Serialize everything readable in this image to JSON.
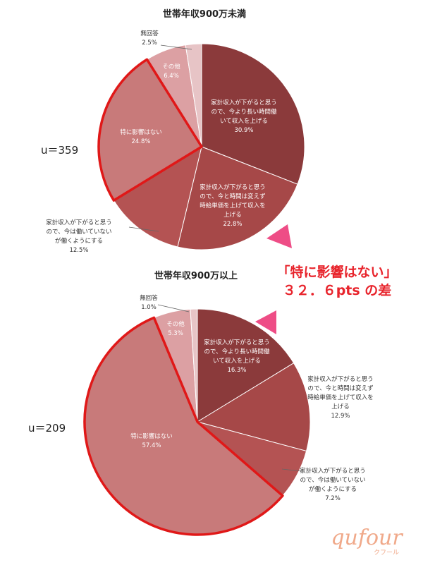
{
  "chart_data": [
    {
      "type": "pie",
      "title": "世帯年収900万未満",
      "n_label": "u＝359",
      "categories": [
        [
          "家計収入が下がると思う",
          "ので、今より長い時間働",
          "いて収入を上げる"
        ],
        [
          "家計収入が下がると思う",
          "ので、今と時間は変えず",
          "時給単価を上げて収入を",
          "上げる"
        ],
        [
          "家計収入が下がると思う",
          "ので、今は働いていない",
          "が働くようにする"
        ],
        [
          "特に影響はない"
        ],
        [
          "その他"
        ],
        [
          "無回答"
        ]
      ],
      "values": [
        "30.9%",
        "22.8%",
        "12.5%",
        "24.8%",
        "6.4%",
        "2.5%"
      ],
      "highlight": "特に影響はない",
      "colors": [
        "#8b3a3b",
        "#a64848",
        "#b45353",
        "#c87a7a",
        "#dca0a3",
        "#e7c4c6"
      ]
    },
    {
      "type": "pie",
      "title": "世帯年収900万以上",
      "n_label": "u＝209",
      "categories": [
        [
          "家計収入が下がると思う",
          "ので、今より長い時間働",
          "いて収入を上げる"
        ],
        [
          "家計収入が下がると思う",
          "ので、今と時間は変えず",
          "時給単価を上げて収入を",
          "上げる"
        ],
        [
          "家計収入が下がると思う",
          "ので、今は働いていない",
          "が働くようにする"
        ],
        [
          "特に影響はない"
        ],
        [
          "その他"
        ],
        [
          "無回答"
        ]
      ],
      "values": [
        "16.3%",
        "12.9%",
        "7.2%",
        "57.4%",
        "5.3%",
        "1.0%"
      ],
      "highlight": "特に影響はない",
      "colors": [
        "#8b3a3b",
        "#a64848",
        "#b45353",
        "#c87a7a",
        "#dca0a3",
        "#e7c4c6"
      ]
    }
  ],
  "callout": {
    "line1": "「特に影響はない」",
    "line2": "３２．６pts の差"
  },
  "logo": {
    "main": "qufour",
    "sub": "クフール"
  }
}
